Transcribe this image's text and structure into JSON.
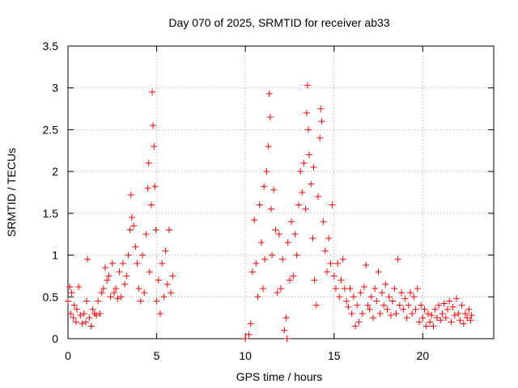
{
  "chart_data": {
    "type": "scatter",
    "title": "Day 070 of 2025, SRMTID for receiver ab33",
    "xlabel": "GPS time / hours",
    "ylabel": "SRMTID / TECUs",
    "xlim": [
      0,
      24
    ],
    "ylim": [
      0,
      3.5
    ],
    "xticks": [
      0,
      5,
      10,
      15,
      20
    ],
    "xtick_labels": [
      "0",
      "5",
      "10",
      "15",
      "20"
    ],
    "yticks": [
      0,
      0.5,
      1,
      1.5,
      2,
      2.5,
      3,
      3.5
    ],
    "ytick_labels": [
      "0",
      "0.5",
      "1",
      "1.5",
      "2",
      "2.5",
      "3",
      "3.5"
    ],
    "grid": true,
    "marker": "+",
    "series": [
      {
        "name": "ab33",
        "color": "#ff0000",
        "points": [
          [
            0.0,
            0.45
          ],
          [
            0.1,
            0.62
          ],
          [
            0.15,
            0.3
          ],
          [
            0.2,
            0.55
          ],
          [
            0.3,
            0.25
          ],
          [
            0.35,
            0.4
          ],
          [
            0.45,
            0.2
          ],
          [
            0.5,
            0.35
          ],
          [
            0.6,
            0.62
          ],
          [
            0.7,
            0.28
          ],
          [
            0.8,
            0.18
          ],
          [
            0.9,
            0.3
          ],
          [
            1.0,
            0.2
          ],
          [
            1.05,
            0.45
          ],
          [
            1.1,
            0.95
          ],
          [
            1.2,
            0.25
          ],
          [
            1.3,
            0.15
          ],
          [
            1.4,
            0.35
          ],
          [
            1.5,
            0.3
          ],
          [
            1.6,
            0.28
          ],
          [
            1.7,
            0.45
          ],
          [
            1.8,
            0.3
          ],
          [
            1.9,
            0.55
          ],
          [
            2.0,
            0.6
          ],
          [
            2.1,
            0.85
          ],
          [
            2.2,
            0.7
          ],
          [
            2.3,
            0.75
          ],
          [
            2.4,
            0.5
          ],
          [
            2.5,
            0.9
          ],
          [
            2.6,
            0.55
          ],
          [
            2.7,
            0.6
          ],
          [
            2.8,
            0.48
          ],
          [
            2.9,
            0.8
          ],
          [
            3.0,
            0.5
          ],
          [
            3.1,
            0.9
          ],
          [
            3.2,
            0.65
          ],
          [
            3.3,
            0.75
          ],
          [
            3.4,
            1.0
          ],
          [
            3.5,
            1.3
          ],
          [
            3.55,
            1.72
          ],
          [
            3.6,
            1.45
          ],
          [
            3.7,
            1.35
          ],
          [
            3.8,
            1.1
          ],
          [
            3.9,
            0.9
          ],
          [
            4.0,
            0.6
          ],
          [
            4.1,
            0.45
          ],
          [
            4.2,
            1.0
          ],
          [
            4.3,
            0.55
          ],
          [
            4.4,
            1.25
          ],
          [
            4.5,
            1.8
          ],
          [
            4.55,
            2.1
          ],
          [
            4.6,
            0.8
          ],
          [
            4.7,
            1.6
          ],
          [
            4.75,
            2.95
          ],
          [
            4.8,
            2.55
          ],
          [
            4.85,
            2.3
          ],
          [
            4.9,
            1.82
          ],
          [
            4.95,
            1.3
          ],
          [
            5.0,
            0.45
          ],
          [
            5.1,
            0.7
          ],
          [
            5.2,
            0.3
          ],
          [
            5.3,
            0.9
          ],
          [
            5.4,
            0.5
          ],
          [
            5.5,
            1.05
          ],
          [
            5.6,
            0.65
          ],
          [
            5.7,
            1.3
          ],
          [
            5.8,
            0.55
          ],
          [
            5.9,
            0.75
          ],
          [
            10.0,
            0.0
          ],
          [
            10.2,
            0.05
          ],
          [
            10.3,
            0.18
          ],
          [
            10.4,
            0.8
          ],
          [
            10.5,
            1.42
          ],
          [
            10.6,
            0.9
          ],
          [
            10.7,
            0.5
          ],
          [
            10.8,
            1.6
          ],
          [
            10.9,
            1.15
          ],
          [
            11.0,
            0.6
          ],
          [
            11.05,
            1.82
          ],
          [
            11.1,
            0.95
          ],
          [
            11.2,
            2.0
          ],
          [
            11.3,
            2.3
          ],
          [
            11.35,
            2.93
          ],
          [
            11.4,
            2.65
          ],
          [
            11.45,
            1.55
          ],
          [
            11.5,
            1.0
          ],
          [
            11.6,
            1.78
          ],
          [
            11.7,
            1.3
          ],
          [
            11.8,
            0.55
          ],
          [
            11.9,
            1.25
          ],
          [
            12.0,
            0.6
          ],
          [
            12.1,
            0.95
          ],
          [
            12.2,
            0.1
          ],
          [
            12.3,
            0.25
          ],
          [
            12.35,
            0.0
          ],
          [
            12.4,
            1.15
          ],
          [
            12.5,
            0.7
          ],
          [
            12.6,
            1.4
          ],
          [
            12.7,
            0.75
          ],
          [
            12.8,
            1.25
          ],
          [
            12.9,
            1.0
          ],
          [
            13.0,
            1.6
          ],
          [
            13.1,
            2.0
          ],
          [
            13.2,
            1.75
          ],
          [
            13.3,
            2.1
          ],
          [
            13.4,
            1.55
          ],
          [
            13.45,
            2.7
          ],
          [
            13.5,
            3.03
          ],
          [
            13.55,
            2.5
          ],
          [
            13.6,
            2.2
          ],
          [
            13.7,
            1.85
          ],
          [
            13.8,
            1.2
          ],
          [
            13.85,
            2.05
          ],
          [
            13.9,
            0.7
          ],
          [
            14.0,
            0.4
          ],
          [
            14.1,
            1.7
          ],
          [
            14.2,
            2.4
          ],
          [
            14.25,
            2.75
          ],
          [
            14.3,
            2.6
          ],
          [
            14.4,
            1.4
          ],
          [
            14.5,
            1.05
          ],
          [
            14.6,
            0.8
          ],
          [
            14.7,
            1.2
          ],
          [
            14.8,
            0.9
          ],
          [
            14.9,
            1.6
          ],
          [
            15.0,
            0.75
          ],
          [
            15.1,
            0.6
          ],
          [
            15.2,
            0.9
          ],
          [
            15.3,
            0.5
          ],
          [
            15.4,
            0.7
          ],
          [
            15.5,
            0.95
          ],
          [
            15.6,
            0.6
          ],
          [
            15.7,
            0.45
          ],
          [
            15.8,
            0.38
          ],
          [
            15.9,
            0.6
          ],
          [
            16.0,
            0.3
          ],
          [
            16.1,
            0.5
          ],
          [
            16.2,
            0.15
          ],
          [
            16.3,
            0.4
          ],
          [
            16.4,
            0.2
          ],
          [
            16.5,
            0.55
          ],
          [
            16.6,
            0.3
          ],
          [
            16.7,
            0.62
          ],
          [
            16.8,
            0.88
          ],
          [
            16.9,
            0.4
          ],
          [
            17.0,
            0.35
          ],
          [
            17.1,
            0.5
          ],
          [
            17.2,
            0.25
          ],
          [
            17.3,
            0.6
          ],
          [
            17.4,
            0.45
          ],
          [
            17.5,
            0.8
          ],
          [
            17.6,
            0.3
          ],
          [
            17.7,
            0.55
          ],
          [
            17.8,
            0.4
          ],
          [
            17.9,
            0.65
          ],
          [
            18.0,
            0.35
          ],
          [
            18.1,
            0.5
          ],
          [
            18.2,
            0.28
          ],
          [
            18.3,
            0.45
          ],
          [
            18.4,
            0.6
          ],
          [
            18.5,
            0.3
          ],
          [
            18.6,
            0.95
          ],
          [
            18.7,
            0.4
          ],
          [
            18.8,
            0.55
          ],
          [
            18.9,
            0.35
          ],
          [
            19.0,
            0.48
          ],
          [
            19.1,
            0.25
          ],
          [
            19.2,
            0.4
          ],
          [
            19.3,
            0.55
          ],
          [
            19.4,
            0.3
          ],
          [
            19.5,
            0.5
          ],
          [
            19.6,
            0.35
          ],
          [
            19.7,
            0.6
          ],
          [
            19.8,
            0.2
          ],
          [
            19.9,
            0.4
          ],
          [
            20.0,
            0.25
          ],
          [
            20.1,
            0.35
          ],
          [
            20.2,
            0.15
          ],
          [
            20.3,
            0.3
          ],
          [
            20.4,
            0.2
          ],
          [
            20.5,
            0.28
          ],
          [
            20.6,
            0.15
          ],
          [
            20.7,
            0.35
          ],
          [
            20.8,
            0.25
          ],
          [
            20.9,
            0.4
          ],
          [
            21.0,
            0.22
          ],
          [
            21.1,
            0.3
          ],
          [
            21.2,
            0.42
          ],
          [
            21.3,
            0.25
          ],
          [
            21.4,
            0.35
          ],
          [
            21.5,
            0.45
          ],
          [
            21.6,
            0.2
          ],
          [
            21.7,
            0.38
          ],
          [
            21.8,
            0.28
          ],
          [
            21.9,
            0.48
          ],
          [
            22.0,
            0.3
          ],
          [
            22.1,
            0.22
          ],
          [
            22.2,
            0.4
          ],
          [
            22.3,
            0.18
          ],
          [
            22.4,
            0.3
          ],
          [
            22.5,
            0.25
          ],
          [
            22.6,
            0.35
          ],
          [
            22.7,
            0.22
          ],
          [
            22.75,
            0.28
          ]
        ]
      }
    ]
  }
}
